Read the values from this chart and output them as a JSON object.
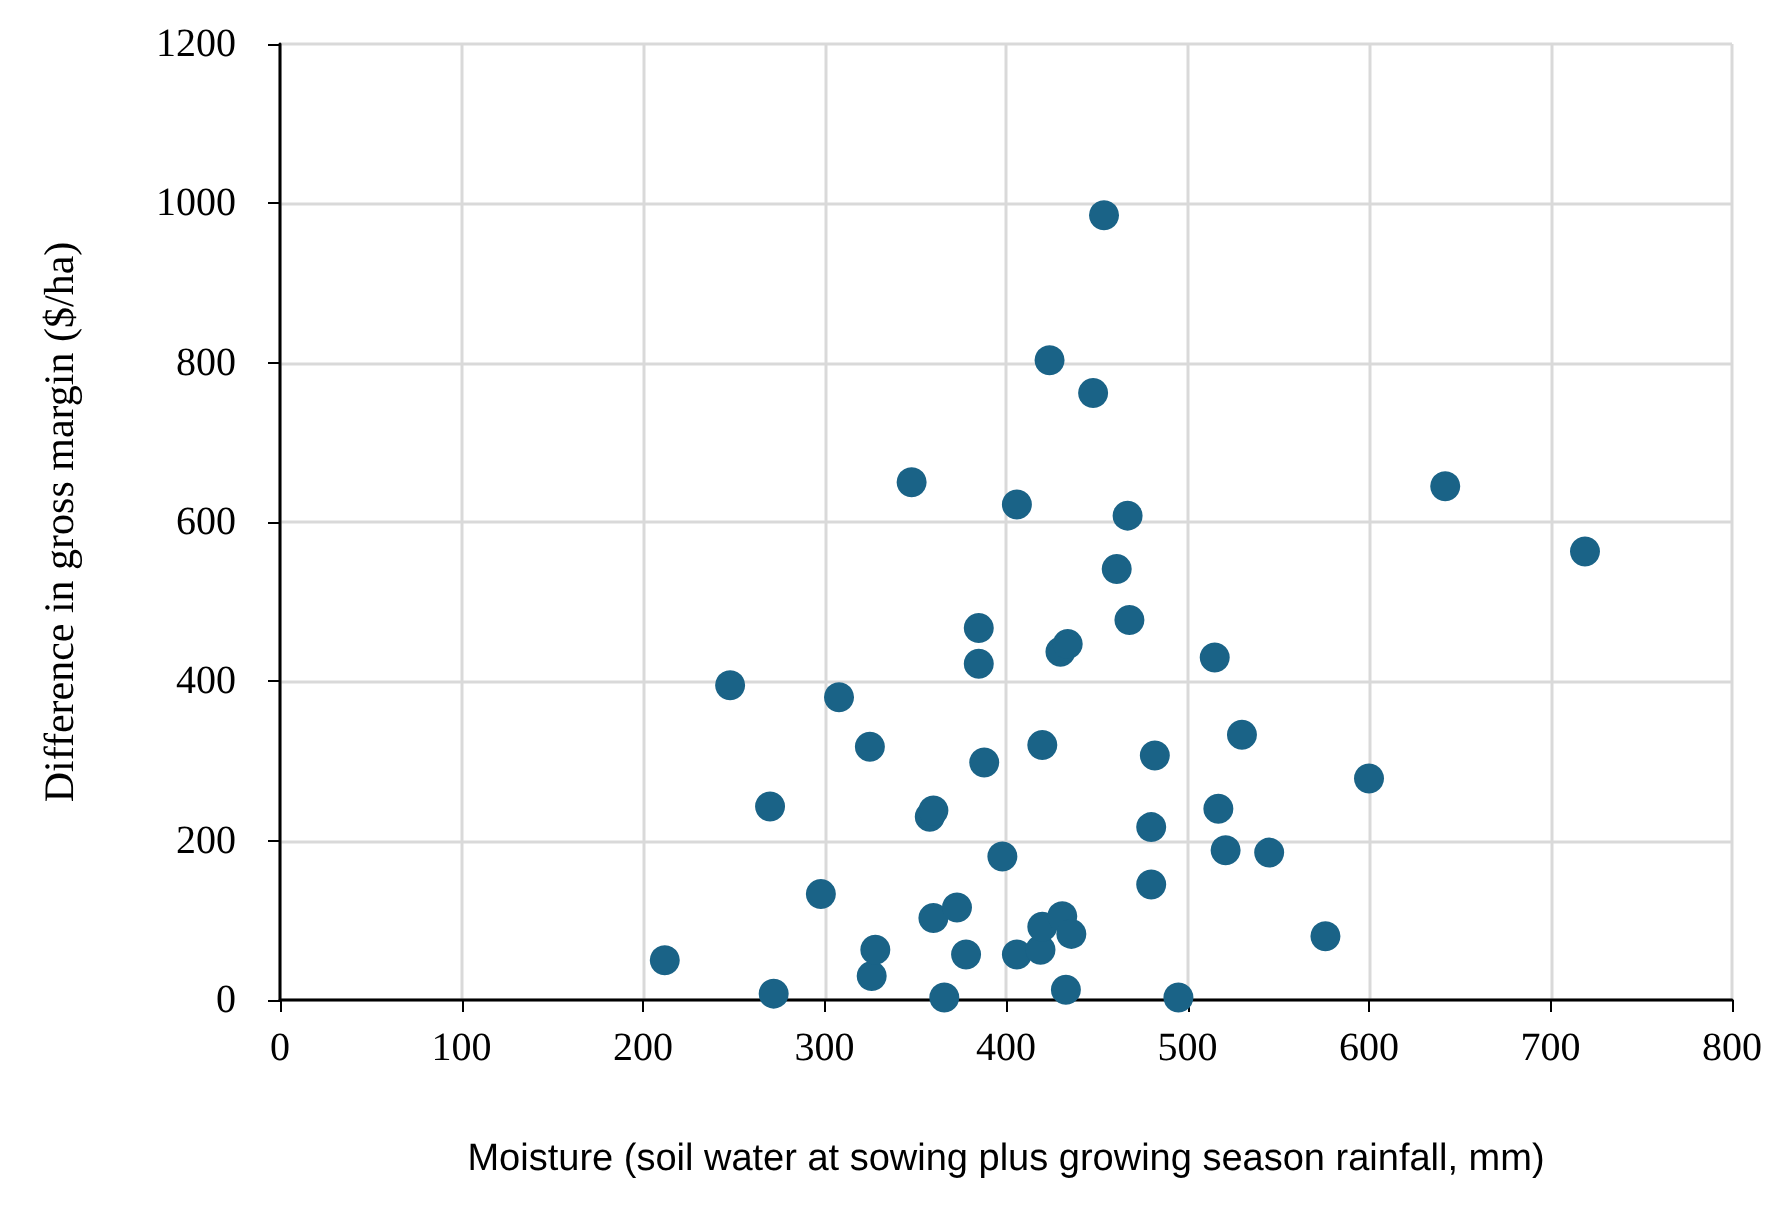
{
  "chart_data": {
    "type": "scatter",
    "xlabel": "Moisture (soil water at sowing plus growing season rainfall, mm)",
    "ylabel": "Difference in gross margin ($/ha)",
    "x": [
      212,
      248,
      270,
      272,
      298,
      308,
      325,
      326,
      328,
      348,
      358,
      360,
      360,
      366,
      373,
      378,
      385,
      385,
      388,
      398,
      406,
      406,
      419,
      420,
      420,
      424,
      430,
      431,
      434,
      433,
      436,
      448,
      454,
      461,
      467,
      468,
      480,
      480,
      482,
      495,
      515,
      517,
      521,
      530,
      545,
      576,
      600,
      642,
      719
    ],
    "series": [
      {
        "color": "#1a6387",
        "values": [
          50,
          395,
          243,
          8,
          133,
          380,
          318,
          30,
          63,
          650,
          230,
          238,
          103,
          3,
          116,
          57,
          467,
          422,
          298,
          180,
          57,
          622,
          63,
          92,
          320,
          803,
          437,
          105,
          447,
          13,
          83,
          762,
          985,
          541,
          608,
          477,
          217,
          145,
          307,
          3,
          430,
          240,
          188,
          333,
          185,
          80,
          278,
          645,
          563
        ]
      }
    ],
    "xlim": [
      0,
      800
    ],
    "xticks": [
      0,
      100,
      200,
      300,
      400,
      500,
      600,
      700,
      800
    ],
    "ylim": [
      0,
      1200
    ],
    "yticks": [
      0,
      200,
      400,
      600,
      800,
      1000,
      1200
    ],
    "grid": true,
    "marker": "circle"
  }
}
